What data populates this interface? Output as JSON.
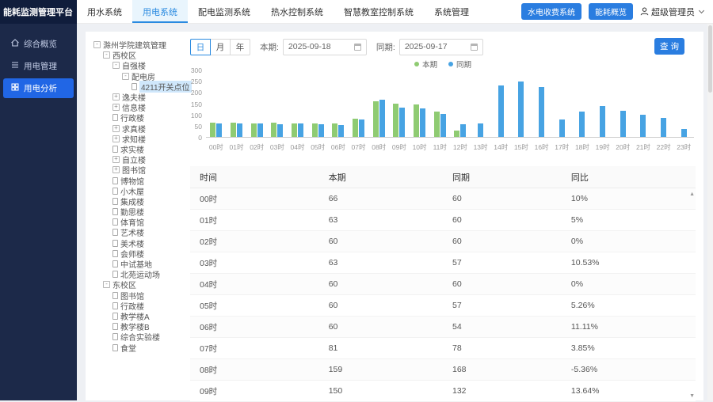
{
  "app": {
    "title": "能耗监测管理平台"
  },
  "sidebar": {
    "items": [
      {
        "label": "综合概览",
        "icon": "home-icon",
        "active": false
      },
      {
        "label": "用电管理",
        "icon": "list-icon",
        "active": false
      },
      {
        "label": "用电分析",
        "icon": "grid-icon",
        "active": true
      }
    ]
  },
  "topnav": {
    "tabs": [
      {
        "label": "用水系统",
        "active": false
      },
      {
        "label": "用电系统",
        "active": true
      },
      {
        "label": "配电监测系统",
        "active": false
      },
      {
        "label": "热水控制系统",
        "active": false
      },
      {
        "label": "智慧教室控制系统",
        "active": false
      },
      {
        "label": "系统管理",
        "active": false
      }
    ],
    "actions": [
      {
        "label": "水电收费系统"
      },
      {
        "label": "能耗概览"
      }
    ],
    "user": "超级管理员"
  },
  "tree": {
    "nodes": [
      {
        "label": "滁州学院建筑管理",
        "level": 0,
        "icon": "minus",
        "selected": false
      },
      {
        "label": "西校区",
        "level": 1,
        "icon": "minus",
        "selected": false
      },
      {
        "label": "自强楼",
        "level": 2,
        "icon": "minus",
        "selected": false
      },
      {
        "label": "配电房",
        "level": 3,
        "icon": "minus",
        "selected": false
      },
      {
        "label": "4211开关点位",
        "level": 4,
        "icon": "file",
        "selected": true
      },
      {
        "label": "逸夫楼",
        "level": 2,
        "icon": "plus",
        "selected": false
      },
      {
        "label": "信息楼",
        "level": 2,
        "icon": "plus",
        "selected": false
      },
      {
        "label": "行政楼",
        "level": 2,
        "icon": "file",
        "selected": false
      },
      {
        "label": "求真楼",
        "level": 2,
        "icon": "plus",
        "selected": false
      },
      {
        "label": "求知楼",
        "level": 2,
        "icon": "plus",
        "selected": false
      },
      {
        "label": "求实楼",
        "level": 2,
        "icon": "file",
        "selected": false
      },
      {
        "label": "自立楼",
        "level": 2,
        "icon": "plus",
        "selected": false
      },
      {
        "label": "图书馆",
        "level": 2,
        "icon": "plus",
        "selected": false
      },
      {
        "label": "博物馆",
        "level": 2,
        "icon": "file",
        "selected": false
      },
      {
        "label": "小木屋",
        "level": 2,
        "icon": "file",
        "selected": false
      },
      {
        "label": "集成楼",
        "level": 2,
        "icon": "file",
        "selected": false
      },
      {
        "label": "勤思楼",
        "level": 2,
        "icon": "file",
        "selected": false
      },
      {
        "label": "体育馆",
        "level": 2,
        "icon": "file",
        "selected": false
      },
      {
        "label": "艺术楼",
        "level": 2,
        "icon": "file",
        "selected": false
      },
      {
        "label": "美术楼",
        "level": 2,
        "icon": "file",
        "selected": false
      },
      {
        "label": "会师楼",
        "level": 2,
        "icon": "file",
        "selected": false
      },
      {
        "label": "中试基地",
        "level": 2,
        "icon": "file",
        "selected": false
      },
      {
        "label": "北苑运动场",
        "level": 2,
        "icon": "file",
        "selected": false
      },
      {
        "label": "东校区",
        "level": 1,
        "icon": "minus",
        "selected": false
      },
      {
        "label": "图书馆",
        "level": 2,
        "icon": "file",
        "selected": false
      },
      {
        "label": "行政楼",
        "level": 2,
        "icon": "file",
        "selected": false
      },
      {
        "label": "教学楼A",
        "level": 2,
        "icon": "file",
        "selected": false
      },
      {
        "label": "教学楼B",
        "level": 2,
        "icon": "file",
        "selected": false
      },
      {
        "label": "综合实验楼",
        "level": 2,
        "icon": "file",
        "selected": false
      },
      {
        "label": "食堂",
        "level": 2,
        "icon": "file",
        "selected": false
      }
    ]
  },
  "toolbar": {
    "period_buttons": [
      {
        "label": "日",
        "active": true
      },
      {
        "label": "月",
        "active": false
      },
      {
        "label": "年",
        "active": false
      }
    ],
    "benqi_label": "本期:",
    "benqi_value": "2025-09-18",
    "tongqi_label": "同期:",
    "tongqi_value": "2025-09-17",
    "query_label": "查 询"
  },
  "chart_data": {
    "type": "bar",
    "title": "",
    "xlabel": "",
    "ylabel": "",
    "categories": [
      "00时",
      "01时",
      "02时",
      "03时",
      "04时",
      "05时",
      "06时",
      "07时",
      "08时",
      "09时",
      "10时",
      "11时",
      "12时",
      "13时",
      "14时",
      "15时",
      "16时",
      "17时",
      "18时",
      "19时",
      "20时",
      "21时",
      "22时",
      "23时"
    ],
    "series": [
      {
        "name": "本期",
        "color": "#8fcb72",
        "values": [
          66,
          63,
          60,
          63,
          60,
          60,
          60,
          81,
          159,
          150,
          148,
          115,
          30,
          0,
          0,
          0,
          0,
          0,
          0,
          0,
          0,
          0,
          0,
          0
        ]
      },
      {
        "name": "同期",
        "color": "#47a3e3",
        "values": [
          60,
          60,
          60,
          57,
          60,
          57,
          54,
          78,
          168,
          132,
          130,
          103,
          57,
          59,
          232,
          250,
          224,
          77,
          114,
          140,
          117,
          100,
          84,
          37
        ]
      }
    ],
    "ylim": [
      0,
      300
    ],
    "yticks": [
      0,
      50,
      100,
      150,
      200,
      250,
      300
    ],
    "legend_position": "top-center",
    "grid": false
  },
  "table": {
    "headers": [
      "时间",
      "本期",
      "同期",
      "同比"
    ],
    "rows": [
      [
        "00时",
        "66",
        "60",
        "10%"
      ],
      [
        "01时",
        "63",
        "60",
        "5%"
      ],
      [
        "02时",
        "60",
        "60",
        "0%"
      ],
      [
        "03时",
        "63",
        "57",
        "10.53%"
      ],
      [
        "04时",
        "60",
        "60",
        "0%"
      ],
      [
        "05时",
        "60",
        "57",
        "5.26%"
      ],
      [
        "06时",
        "60",
        "54",
        "11.11%"
      ],
      [
        "07时",
        "81",
        "78",
        "3.85%"
      ],
      [
        "08时",
        "159",
        "168",
        "-5.36%"
      ],
      [
        "09时",
        "150",
        "132",
        "13.64%"
      ]
    ]
  }
}
